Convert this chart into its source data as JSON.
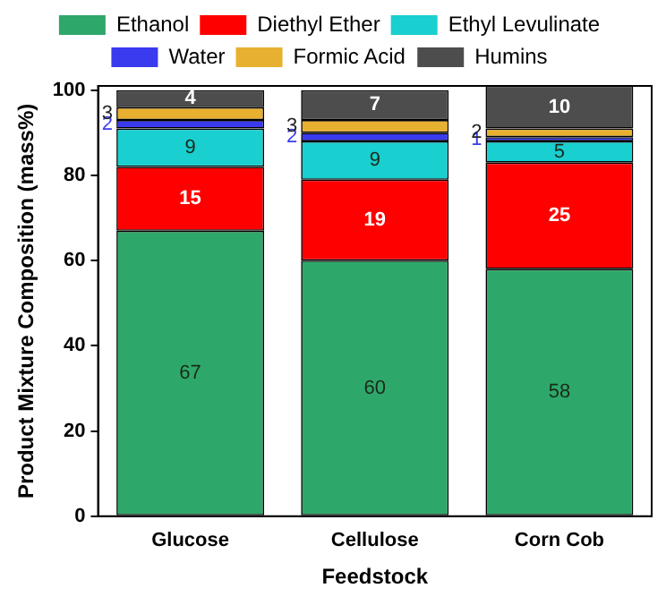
{
  "chart_data": {
    "type": "bar",
    "stacked": true,
    "xlabel": "Feedstock",
    "ylabel": "Product Mixture Composition (mass%)",
    "categories": [
      "Glucose",
      "Cellulose",
      "Corn Cob"
    ],
    "series": [
      {
        "name": "Ethanol",
        "color": "#2ea86a",
        "values": [
          67,
          60,
          58
        ]
      },
      {
        "name": "Diethyl Ether",
        "color": "#ff0000",
        "values": [
          15,
          19,
          25
        ]
      },
      {
        "name": "Ethyl Levulinate",
        "color": "#19cfcf",
        "values": [
          9,
          9,
          5
        ]
      },
      {
        "name": "Water",
        "color": "#3a3aee",
        "values": [
          2,
          2,
          1
        ]
      },
      {
        "name": "Formic Acid",
        "color": "#e8b030",
        "values": [
          3,
          3,
          2
        ]
      },
      {
        "name": "Humins",
        "color": "#4d4d4d",
        "values": [
          4,
          7,
          10
        ]
      }
    ],
    "ylim": [
      0,
      101
    ],
    "yticks": [
      0,
      20,
      40,
      60,
      80,
      100
    ],
    "grid": false,
    "legend": "top",
    "data_labels": true
  }
}
